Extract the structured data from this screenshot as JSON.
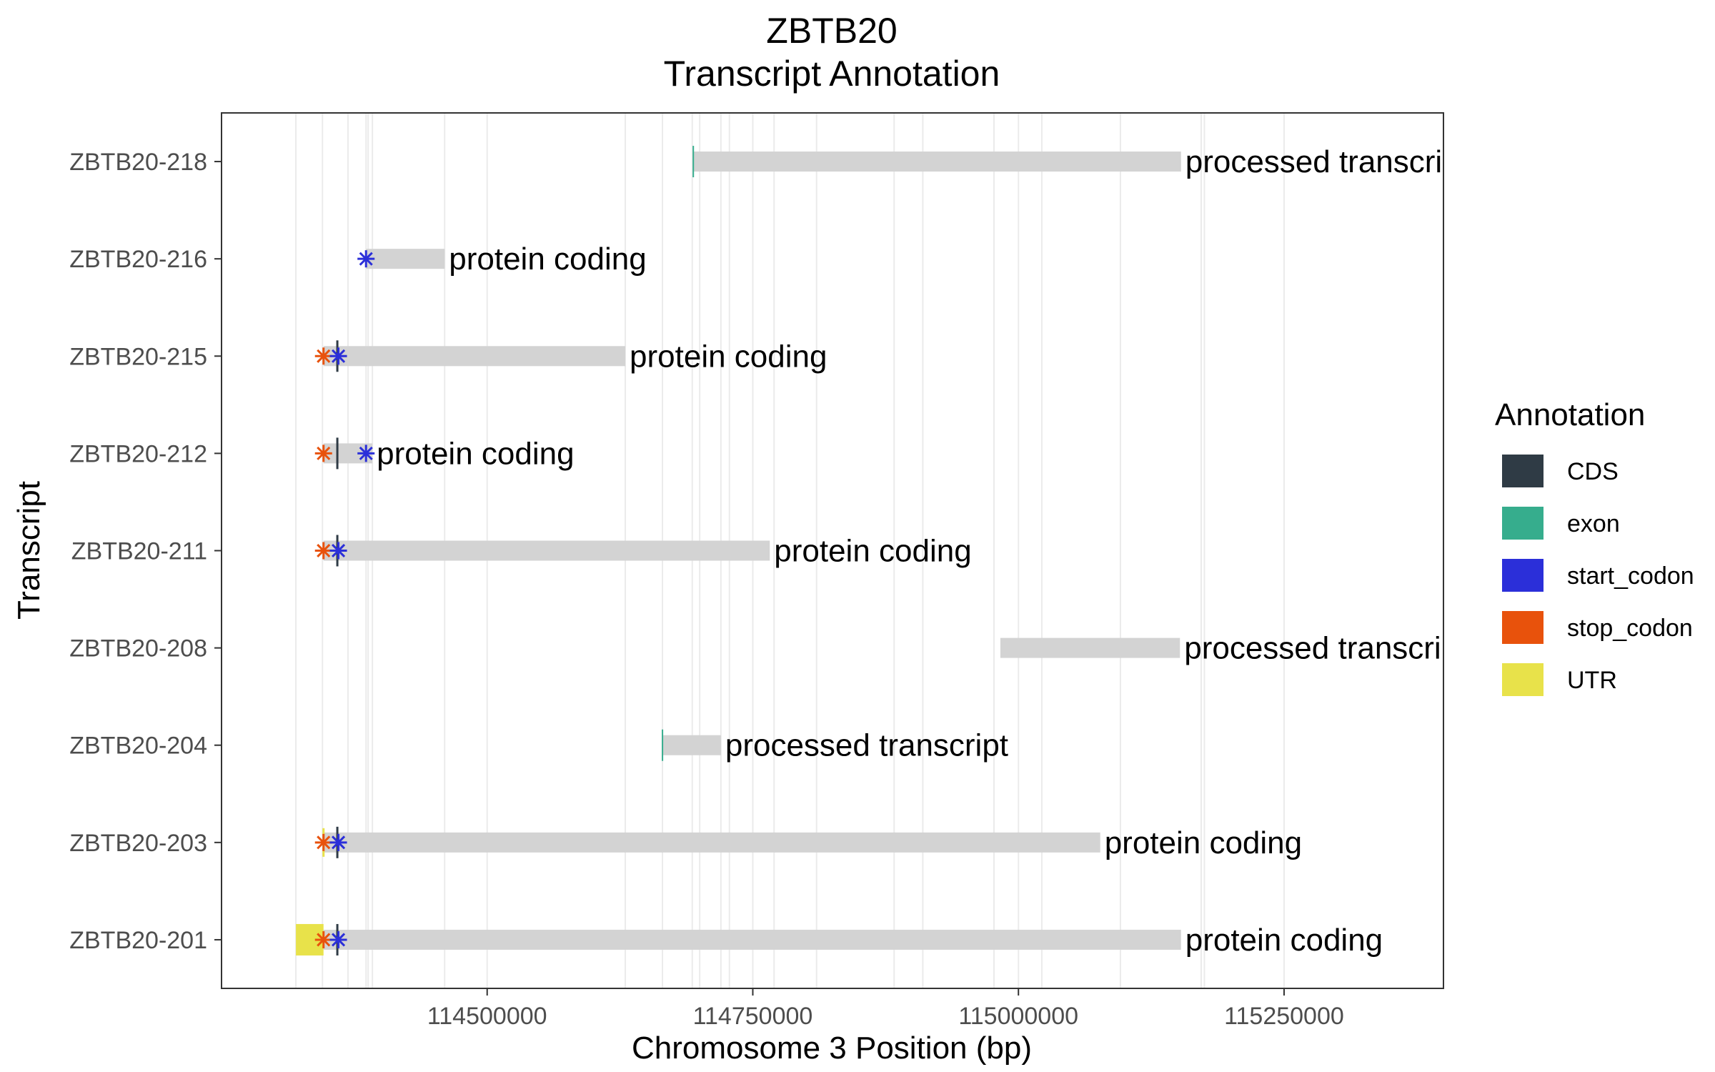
{
  "chart_data": {
    "type": "gene-track",
    "title_line1": "ZBTB20",
    "title_line2": "Transcript Annotation",
    "xlabel": "Chromosome 3 Position (bp)",
    "ylabel": "Transcript",
    "xlim": [
      114250000,
      115400000
    ],
    "xticks": [
      114500000,
      114750000,
      115000000,
      115250000
    ],
    "xtick_labels": [
      "114500000",
      "114750000",
      "115000000",
      "115250000"
    ],
    "grid_x": [
      114320000,
      114345000,
      114369000,
      114386000,
      114388000,
      114392000,
      114460000,
      114630000,
      114665000,
      114693000,
      114700000,
      114720000,
      114728000,
      114770000,
      114810000,
      114883000,
      114910000,
      114977000,
      115022000,
      115096000,
      115172000,
      115175000
    ],
    "transcripts": [
      {
        "name": "ZBTB20-218",
        "start": 114694000,
        "end": 115153000,
        "biotype": "processed transcript",
        "features": [
          {
            "type": "exon",
            "pos": 114694000
          }
        ]
      },
      {
        "name": "ZBTB20-216",
        "start": 114386000,
        "end": 114460000,
        "biotype": "protein coding",
        "features": [
          {
            "type": "start_codon",
            "pos": 114386000
          }
        ]
      },
      {
        "name": "ZBTB20-215",
        "start": 114346000,
        "end": 114630000,
        "biotype": "protein coding",
        "features": [
          {
            "type": "stop_codon",
            "pos": 114346000
          },
          {
            "type": "CDS",
            "pos": 114359000
          },
          {
            "type": "start_codon",
            "pos": 114360000
          }
        ]
      },
      {
        "name": "ZBTB20-212",
        "start": 114346000,
        "end": 114392000,
        "biotype": "protein coding",
        "features": [
          {
            "type": "stop_codon",
            "pos": 114346000
          },
          {
            "type": "CDS",
            "pos": 114359000
          },
          {
            "type": "start_codon",
            "pos": 114386000
          }
        ]
      },
      {
        "name": "ZBTB20-211",
        "start": 114346000,
        "end": 114766000,
        "biotype": "protein coding",
        "features": [
          {
            "type": "stop_codon",
            "pos": 114346000
          },
          {
            "type": "CDS",
            "pos": 114359000
          },
          {
            "type": "start_codon",
            "pos": 114360000
          }
        ]
      },
      {
        "name": "ZBTB20-208",
        "start": 114983000,
        "end": 115152000,
        "biotype": "processed transcript",
        "features": []
      },
      {
        "name": "ZBTB20-204",
        "start": 114665000,
        "end": 114720000,
        "biotype": "processed transcript",
        "features": [
          {
            "type": "exon",
            "pos": 114665000
          }
        ]
      },
      {
        "name": "ZBTB20-203",
        "start": 114346000,
        "end": 115077000,
        "biotype": "protein coding",
        "features": [
          {
            "type": "UTR",
            "pos": 114346000
          },
          {
            "type": "stop_codon",
            "pos": 114346000
          },
          {
            "type": "CDS",
            "pos": 114359000
          },
          {
            "type": "start_codon",
            "pos": 114360000
          }
        ]
      },
      {
        "name": "ZBTB20-201",
        "start": 114346000,
        "end": 115153000,
        "biotype": "protein coding",
        "features": [
          {
            "type": "UTR_block",
            "start": 114320000,
            "end": 114346000
          },
          {
            "type": "stop_codon",
            "pos": 114346000
          },
          {
            "type": "CDS",
            "pos": 114359000
          },
          {
            "type": "start_codon",
            "pos": 114360000
          }
        ]
      }
    ],
    "legend": {
      "title": "Annotation",
      "items": [
        {
          "label": "CDS",
          "color": "#2f3b45"
        },
        {
          "label": "exon",
          "color": "#36ad8d"
        },
        {
          "label": "start_codon",
          "color": "#2b2fd9"
        },
        {
          "label": "stop_codon",
          "color": "#e8520c"
        },
        {
          "label": "UTR",
          "color": "#e8e24a"
        }
      ]
    },
    "bar_color": "#d3d3d3",
    "grid": true,
    "legend_position": "right"
  }
}
